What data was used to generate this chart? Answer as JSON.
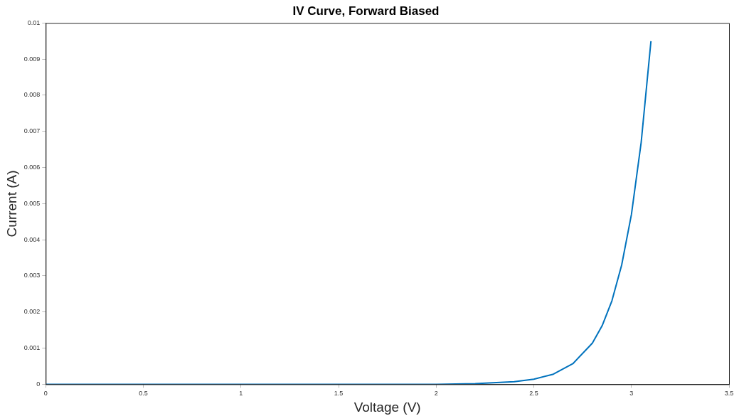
{
  "chart_data": {
    "type": "line",
    "title": "IV Curve, Forward Biased",
    "xlabel": "Voltage (V)",
    "ylabel": "Current (A)",
    "x": [
      0,
      0.5,
      1,
      1.5,
      2,
      2.2,
      2.4,
      2.5,
      2.6,
      2.7,
      2.8,
      2.85,
      2.9,
      2.95,
      3,
      3.05,
      3.1
    ],
    "series": [
      {
        "color": "#0072bd",
        "values": [
          0,
          0,
          0,
          0,
          0,
          2e-05,
          7e-05,
          0.00014,
          0.00028,
          0.00057,
          0.00114,
          0.00162,
          0.00231,
          0.0033,
          0.0047,
          0.0067,
          0.0095
        ]
      }
    ],
    "xlim": [
      0,
      3.5
    ],
    "xticks": [
      0,
      0.5,
      1,
      1.5,
      2,
      2.5,
      3,
      3.5
    ],
    "ylim": [
      0,
      0.01
    ],
    "yticks": [
      0,
      0.001,
      0.002,
      0.003,
      0.004,
      0.005,
      0.006,
      0.007,
      0.008,
      0.009,
      0.01
    ],
    "grid": false,
    "legend": false,
    "marker": "none",
    "line_style": "solid"
  }
}
